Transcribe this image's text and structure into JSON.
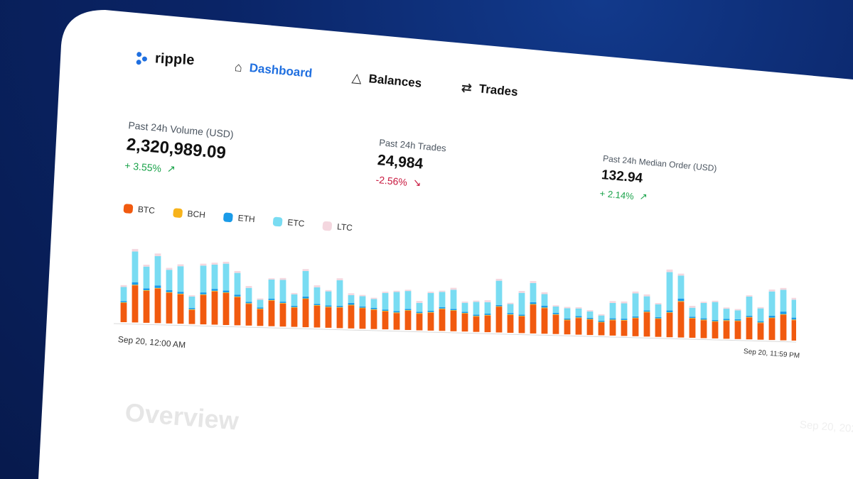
{
  "app": {
    "name": "ripple"
  },
  "nav": {
    "items": [
      {
        "label": "Dashboard",
        "icon": "home-icon",
        "active": true
      },
      {
        "label": "Balances",
        "icon": "bell-icon",
        "active": false
      },
      {
        "label": "Trades",
        "icon": "swap-arrows-icon",
        "active": false
      }
    ]
  },
  "stats": [
    {
      "label": "Past 24h Volume (USD)",
      "value": "2,320,989.09",
      "change": "+ 3.55%",
      "direction": "up"
    },
    {
      "label": "Past 24h Trades",
      "value": "24,984",
      "change": "-2.56%",
      "direction": "down"
    },
    {
      "label": "Past 24h Median Order (USD)",
      "value": "132.94",
      "change": "+ 2.14%",
      "direction": "up"
    }
  ],
  "colors": {
    "BTC": "#f15a0f",
    "BCH": "#f7b31b",
    "ETH": "#1a9be8",
    "ETC": "#79dcf2",
    "LTC": "#f4d7df",
    "accent": "#1f6fe0",
    "up": "#1aa34a",
    "down": "#c8173e"
  },
  "overview": {
    "title": "Overview",
    "date_partial": "Sep 20, 202"
  },
  "chart_data": {
    "type": "bar",
    "stacked": true,
    "legend": [
      "BTC",
      "BCH",
      "ETH",
      "ETC",
      "LTC"
    ],
    "x_start_label": "Sep 20, 12:00 AM",
    "x_end_label": "Sep 20, 11:59 PM",
    "series": [
      {
        "name": "BTC",
        "values": [
          30,
          58,
          50,
          54,
          48,
          46,
          22,
          46,
          52,
          50,
          44,
          34,
          26,
          40,
          36,
          30,
          44,
          34,
          32,
          32,
          36,
          32,
          30,
          28,
          26,
          30,
          26,
          28,
          34,
          32,
          28,
          24,
          26,
          40,
          28,
          26,
          45,
          40,
          30,
          22,
          26,
          24,
          20,
          24,
          24,
          28,
          38,
          28,
          38,
          56,
          30,
          28,
          26,
          28,
          28,
          34,
          26,
          34,
          40,
          32
        ]
      },
      {
        "name": "BCH",
        "values": [
          1,
          1,
          1,
          1,
          1,
          1,
          1,
          1,
          1,
          1,
          1,
          1,
          1,
          1,
          1,
          1,
          1,
          1,
          1,
          1,
          1,
          1,
          1,
          1,
          1,
          1,
          1,
          1,
          1,
          1,
          1,
          1,
          1,
          1,
          1,
          1,
          1,
          1,
          1,
          1,
          1,
          1,
          1,
          1,
          1,
          1,
          1,
          1,
          1,
          1,
          1,
          1,
          1,
          1,
          1,
          1,
          1,
          1,
          1,
          1
        ]
      },
      {
        "name": "ETH",
        "values": [
          2,
          4,
          3,
          4,
          3,
          3,
          2,
          3,
          3,
          3,
          3,
          2,
          2,
          2,
          2,
          2,
          3,
          2,
          2,
          2,
          3,
          2,
          2,
          2,
          2,
          2,
          2,
          2,
          2,
          2,
          2,
          2,
          2,
          2,
          2,
          2,
          3,
          3,
          2,
          2,
          2,
          2,
          2,
          2,
          2,
          2,
          2,
          2,
          3,
          4,
          2,
          2,
          2,
          2,
          2,
          2,
          2,
          3,
          4,
          3
        ]
      },
      {
        "name": "ETC",
        "values": [
          22,
          48,
          34,
          46,
          32,
          40,
          18,
          42,
          38,
          42,
          34,
          22,
          12,
          30,
          34,
          18,
          40,
          26,
          22,
          40,
          12,
          16,
          14,
          26,
          30,
          28,
          14,
          28,
          24,
          30,
          14,
          20,
          18,
          38,
          14,
          34,
          30,
          18,
          10,
          16,
          12,
          10,
          8,
          24,
          24,
          36,
          22,
          20,
          60,
          36,
          14,
          24,
          28,
          16,
          14,
          30,
          20,
          38,
          34,
          28
        ]
      },
      {
        "name": "LTC",
        "values": [
          3,
          4,
          3,
          4,
          3,
          3,
          2,
          3,
          3,
          3,
          3,
          3,
          2,
          2,
          3,
          2,
          3,
          3,
          2,
          3,
          3,
          2,
          2,
          2,
          2,
          2,
          3,
          2,
          2,
          3,
          2,
          2,
          3,
          3,
          2,
          3,
          3,
          3,
          2,
          2,
          2,
          2,
          2,
          3,
          3,
          3,
          3,
          2,
          4,
          3,
          3,
          2,
          2,
          2,
          2,
          2,
          2,
          3,
          3,
          3
        ]
      }
    ]
  }
}
